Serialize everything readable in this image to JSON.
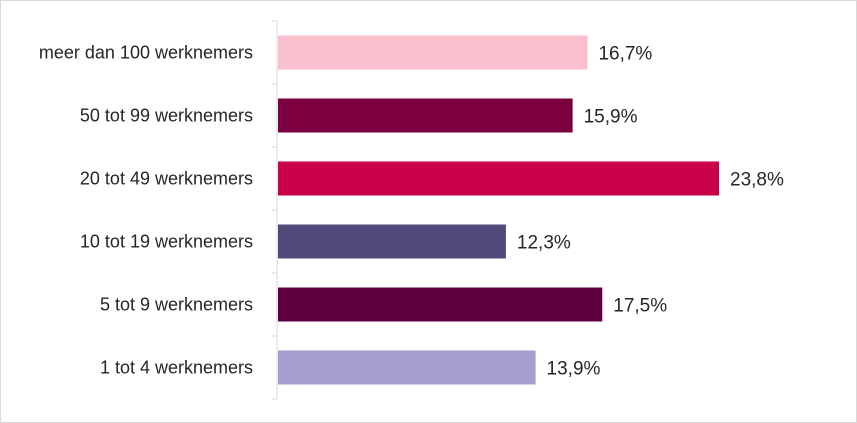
{
  "chart_data": {
    "type": "bar",
    "orientation": "horizontal",
    "categories": [
      "meer dan 100 werknemers",
      "50 tot 99 werknemers",
      "20 tot 49 werknemers",
      "10 tot 19 werknemers",
      "5 tot 9 werknemers",
      "1 tot 4 werknemers"
    ],
    "values": [
      16.7,
      15.9,
      23.8,
      12.3,
      17.5,
      13.9
    ],
    "value_labels": [
      "16,7%",
      "15,9%",
      "23,8%",
      "12,3%",
      "17,5%",
      "13,9%"
    ],
    "colors": [
      "#f9bfcd",
      "#7c0040",
      "#c8004a",
      "#4f4a7a",
      "#5e0040",
      "#a39ece"
    ],
    "title": "",
    "xlabel": "",
    "ylabel": "",
    "xlim": [
      0,
      25
    ],
    "grid": false,
    "legend": false
  }
}
